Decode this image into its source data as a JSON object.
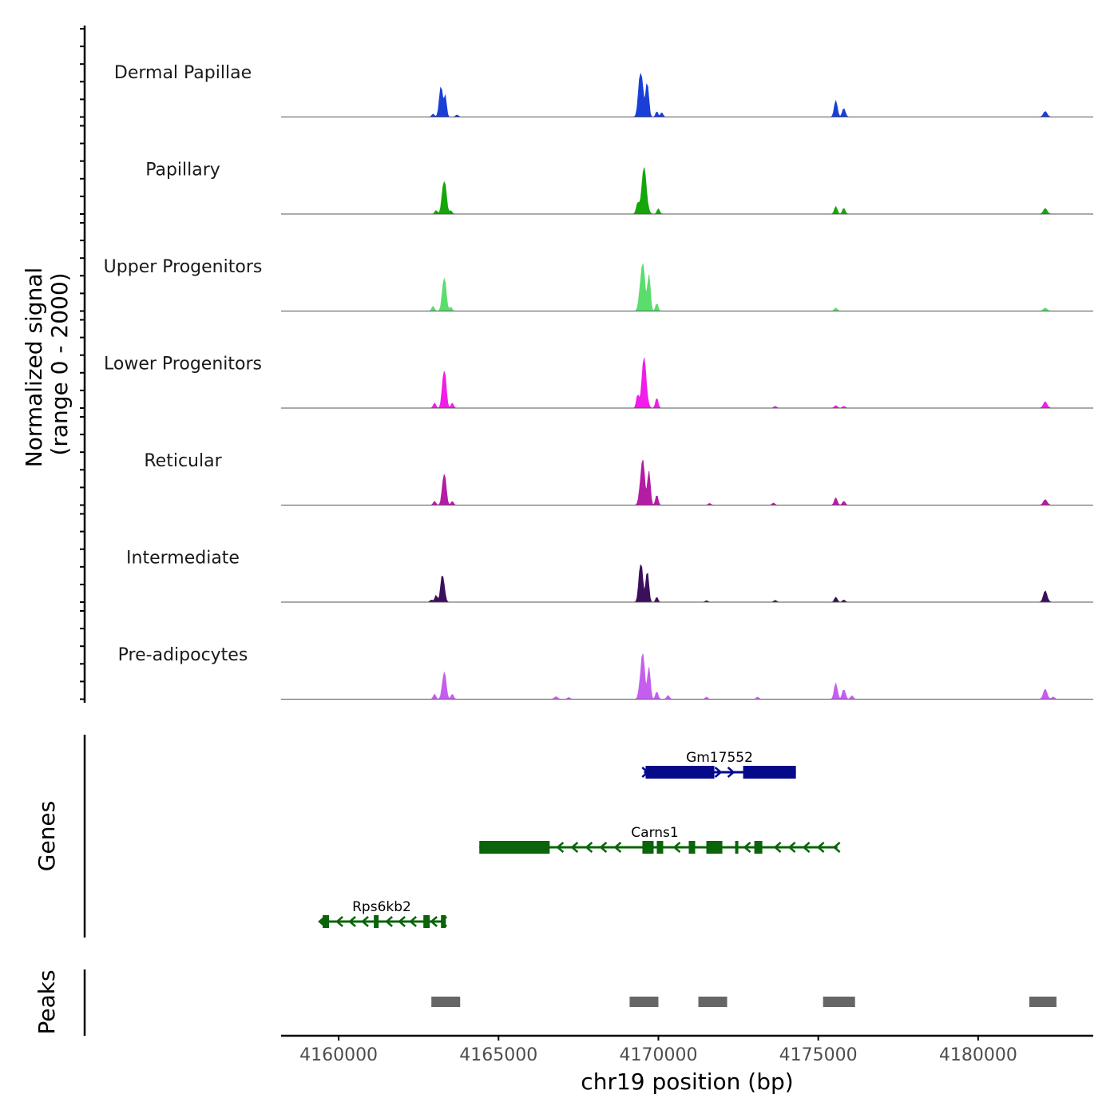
{
  "chart_data": {
    "type": "area",
    "xlabel": "chr19 position (bp)",
    "ylabel": "Normalized signal",
    "ylabel_range": "(range 0 - 2000)",
    "ylim": [
      0,
      2000
    ],
    "xlim": [
      4158200,
      4183600
    ],
    "x_ticks": [
      4160000,
      4165000,
      4170000,
      4175000,
      4180000
    ],
    "x_tick_labels": [
      "4160000",
      "4165000",
      "4170000",
      "4175000",
      "4180000"
    ],
    "tracks": [
      {
        "name": "Dermal Papillae",
        "color": "#1a3fd8",
        "peaks": [
          [
            4163200,
            1200,
            55
          ],
          [
            4163330,
            880,
            40
          ],
          [
            4162950,
            120,
            40
          ],
          [
            4163700,
            90,
            40
          ],
          [
            4169450,
            2000,
            65
          ],
          [
            4169650,
            1550,
            45
          ],
          [
            4169950,
            220,
            35
          ],
          [
            4170100,
            180,
            40
          ],
          [
            4175550,
            650,
            50
          ],
          [
            4175800,
            380,
            45
          ],
          [
            4182100,
            220,
            60
          ]
        ]
      },
      {
        "name": "Papillary",
        "color": "#16a50b",
        "peaks": [
          [
            4163300,
            1500,
            60
          ],
          [
            4163050,
            150,
            40
          ],
          [
            4163500,
            150,
            40
          ],
          [
            4169550,
            1850,
            75
          ],
          [
            4169350,
            400,
            45
          ],
          [
            4170000,
            220,
            40
          ],
          [
            4175550,
            300,
            45
          ],
          [
            4175800,
            260,
            40
          ],
          [
            4182100,
            220,
            60
          ]
        ]
      },
      {
        "name": "Upper Progenitors",
        "color": "#5bdd6e",
        "peaks": [
          [
            4163300,
            1500,
            55
          ],
          [
            4162950,
            200,
            40
          ],
          [
            4163500,
            180,
            40
          ],
          [
            4169500,
            2000,
            70
          ],
          [
            4169700,
            1500,
            45
          ],
          [
            4169950,
            300,
            40
          ],
          [
            4175550,
            120,
            45
          ],
          [
            4182100,
            120,
            60
          ]
        ]
      },
      {
        "name": "Lower Progenitors",
        "color": "#f01ee8",
        "peaks": [
          [
            4163300,
            1700,
            55
          ],
          [
            4163000,
            200,
            40
          ],
          [
            4163550,
            200,
            40
          ],
          [
            4169550,
            2000,
            70
          ],
          [
            4169350,
            500,
            40
          ],
          [
            4169950,
            400,
            40
          ],
          [
            4173650,
            80,
            40
          ],
          [
            4175550,
            100,
            45
          ],
          [
            4175800,
            80,
            40
          ],
          [
            4182100,
            250,
            60
          ]
        ]
      },
      {
        "name": "Reticular",
        "color": "#b31ca5",
        "peaks": [
          [
            4163300,
            1400,
            55
          ],
          [
            4163000,
            150,
            40
          ],
          [
            4163550,
            150,
            40
          ],
          [
            4169500,
            1900,
            65
          ],
          [
            4169700,
            1400,
            45
          ],
          [
            4169950,
            400,
            40
          ],
          [
            4171600,
            70,
            40
          ],
          [
            4173600,
            90,
            40
          ],
          [
            4175550,
            300,
            45
          ],
          [
            4175800,
            180,
            40
          ],
          [
            4182100,
            220,
            60
          ]
        ]
      },
      {
        "name": "Intermediate",
        "color": "#3b0f5c",
        "peaks": [
          [
            4163250,
            1200,
            55
          ],
          [
            4163050,
            300,
            40
          ],
          [
            4162900,
            100,
            40
          ],
          [
            4169450,
            1800,
            55
          ],
          [
            4169650,
            1400,
            45
          ],
          [
            4169950,
            200,
            35
          ],
          [
            4171500,
            60,
            40
          ],
          [
            4173650,
            80,
            40
          ],
          [
            4175550,
            200,
            45
          ],
          [
            4175800,
            100,
            40
          ],
          [
            4182100,
            450,
            60
          ]
        ]
      },
      {
        "name": "Pre-adipocytes",
        "color": "#c55ef0",
        "peaks": [
          [
            4163300,
            1200,
            55
          ],
          [
            4163000,
            200,
            40
          ],
          [
            4163550,
            200,
            40
          ],
          [
            4169500,
            1900,
            65
          ],
          [
            4169700,
            1300,
            45
          ],
          [
            4169950,
            300,
            40
          ],
          [
            4170300,
            150,
            40
          ],
          [
            4166800,
            100,
            50
          ],
          [
            4167200,
            70,
            40
          ],
          [
            4171500,
            80,
            40
          ],
          [
            4173100,
            80,
            40
          ],
          [
            4175550,
            650,
            50
          ],
          [
            4175800,
            450,
            45
          ],
          [
            4176050,
            150,
            40
          ],
          [
            4182100,
            400,
            60
          ],
          [
            4182350,
            100,
            40
          ]
        ]
      }
    ],
    "genes_track_label": "Genes",
    "genes": [
      {
        "name": "Gm17552",
        "color": "#050a8a",
        "start": 4169550,
        "end": 4174300,
        "strand": "+",
        "exons": [
          [
            4169600,
            4171750
          ],
          [
            4172650,
            4174300
          ]
        ],
        "arrows": [
          4169620,
          4171900,
          4172300
        ]
      },
      {
        "name": "Carns1",
        "color": "#0a640a",
        "start": 4164400,
        "end": 4175600,
        "strand": "-",
        "exons": [
          [
            4164400,
            4166600
          ],
          [
            4169500,
            4169850
          ],
          [
            4169950,
            4170150
          ],
          [
            4170950,
            4171150
          ],
          [
            4171500,
            4172000
          ],
          [
            4172400,
            4172500
          ],
          [
            4173000,
            4173250
          ]
        ],
        "arrows": [
          4166900,
          4167350,
          4167800,
          4168250,
          4168700,
          4170550,
          4172750,
          4173700,
          4174150,
          4174600,
          4175050,
          4175550
        ]
      },
      {
        "name": "Rps6kb2",
        "color": "#0a640a",
        "start": 4159400,
        "end": 4163350,
        "strand": "-",
        "exons": [
          [
            4159500,
            4159700
          ],
          [
            4161100,
            4161250
          ],
          [
            4162650,
            4162850
          ],
          [
            4163200,
            4163350
          ]
        ],
        "arrows": [
          4159450,
          4160000,
          4160400,
          4160800,
          4161550,
          4161950,
          4162300,
          4162950,
          4163250
        ]
      }
    ],
    "peaks_track_label": "Peaks",
    "peak_regions": [
      [
        4162900,
        4163800
      ],
      [
        4169100,
        4170000
      ],
      [
        4171250,
        4172150
      ],
      [
        4175150,
        4176150
      ],
      [
        4181600,
        4182450
      ]
    ]
  },
  "colors": {
    "peak_region": "#666666",
    "baseline": "#555555",
    "axis": "#000000"
  }
}
